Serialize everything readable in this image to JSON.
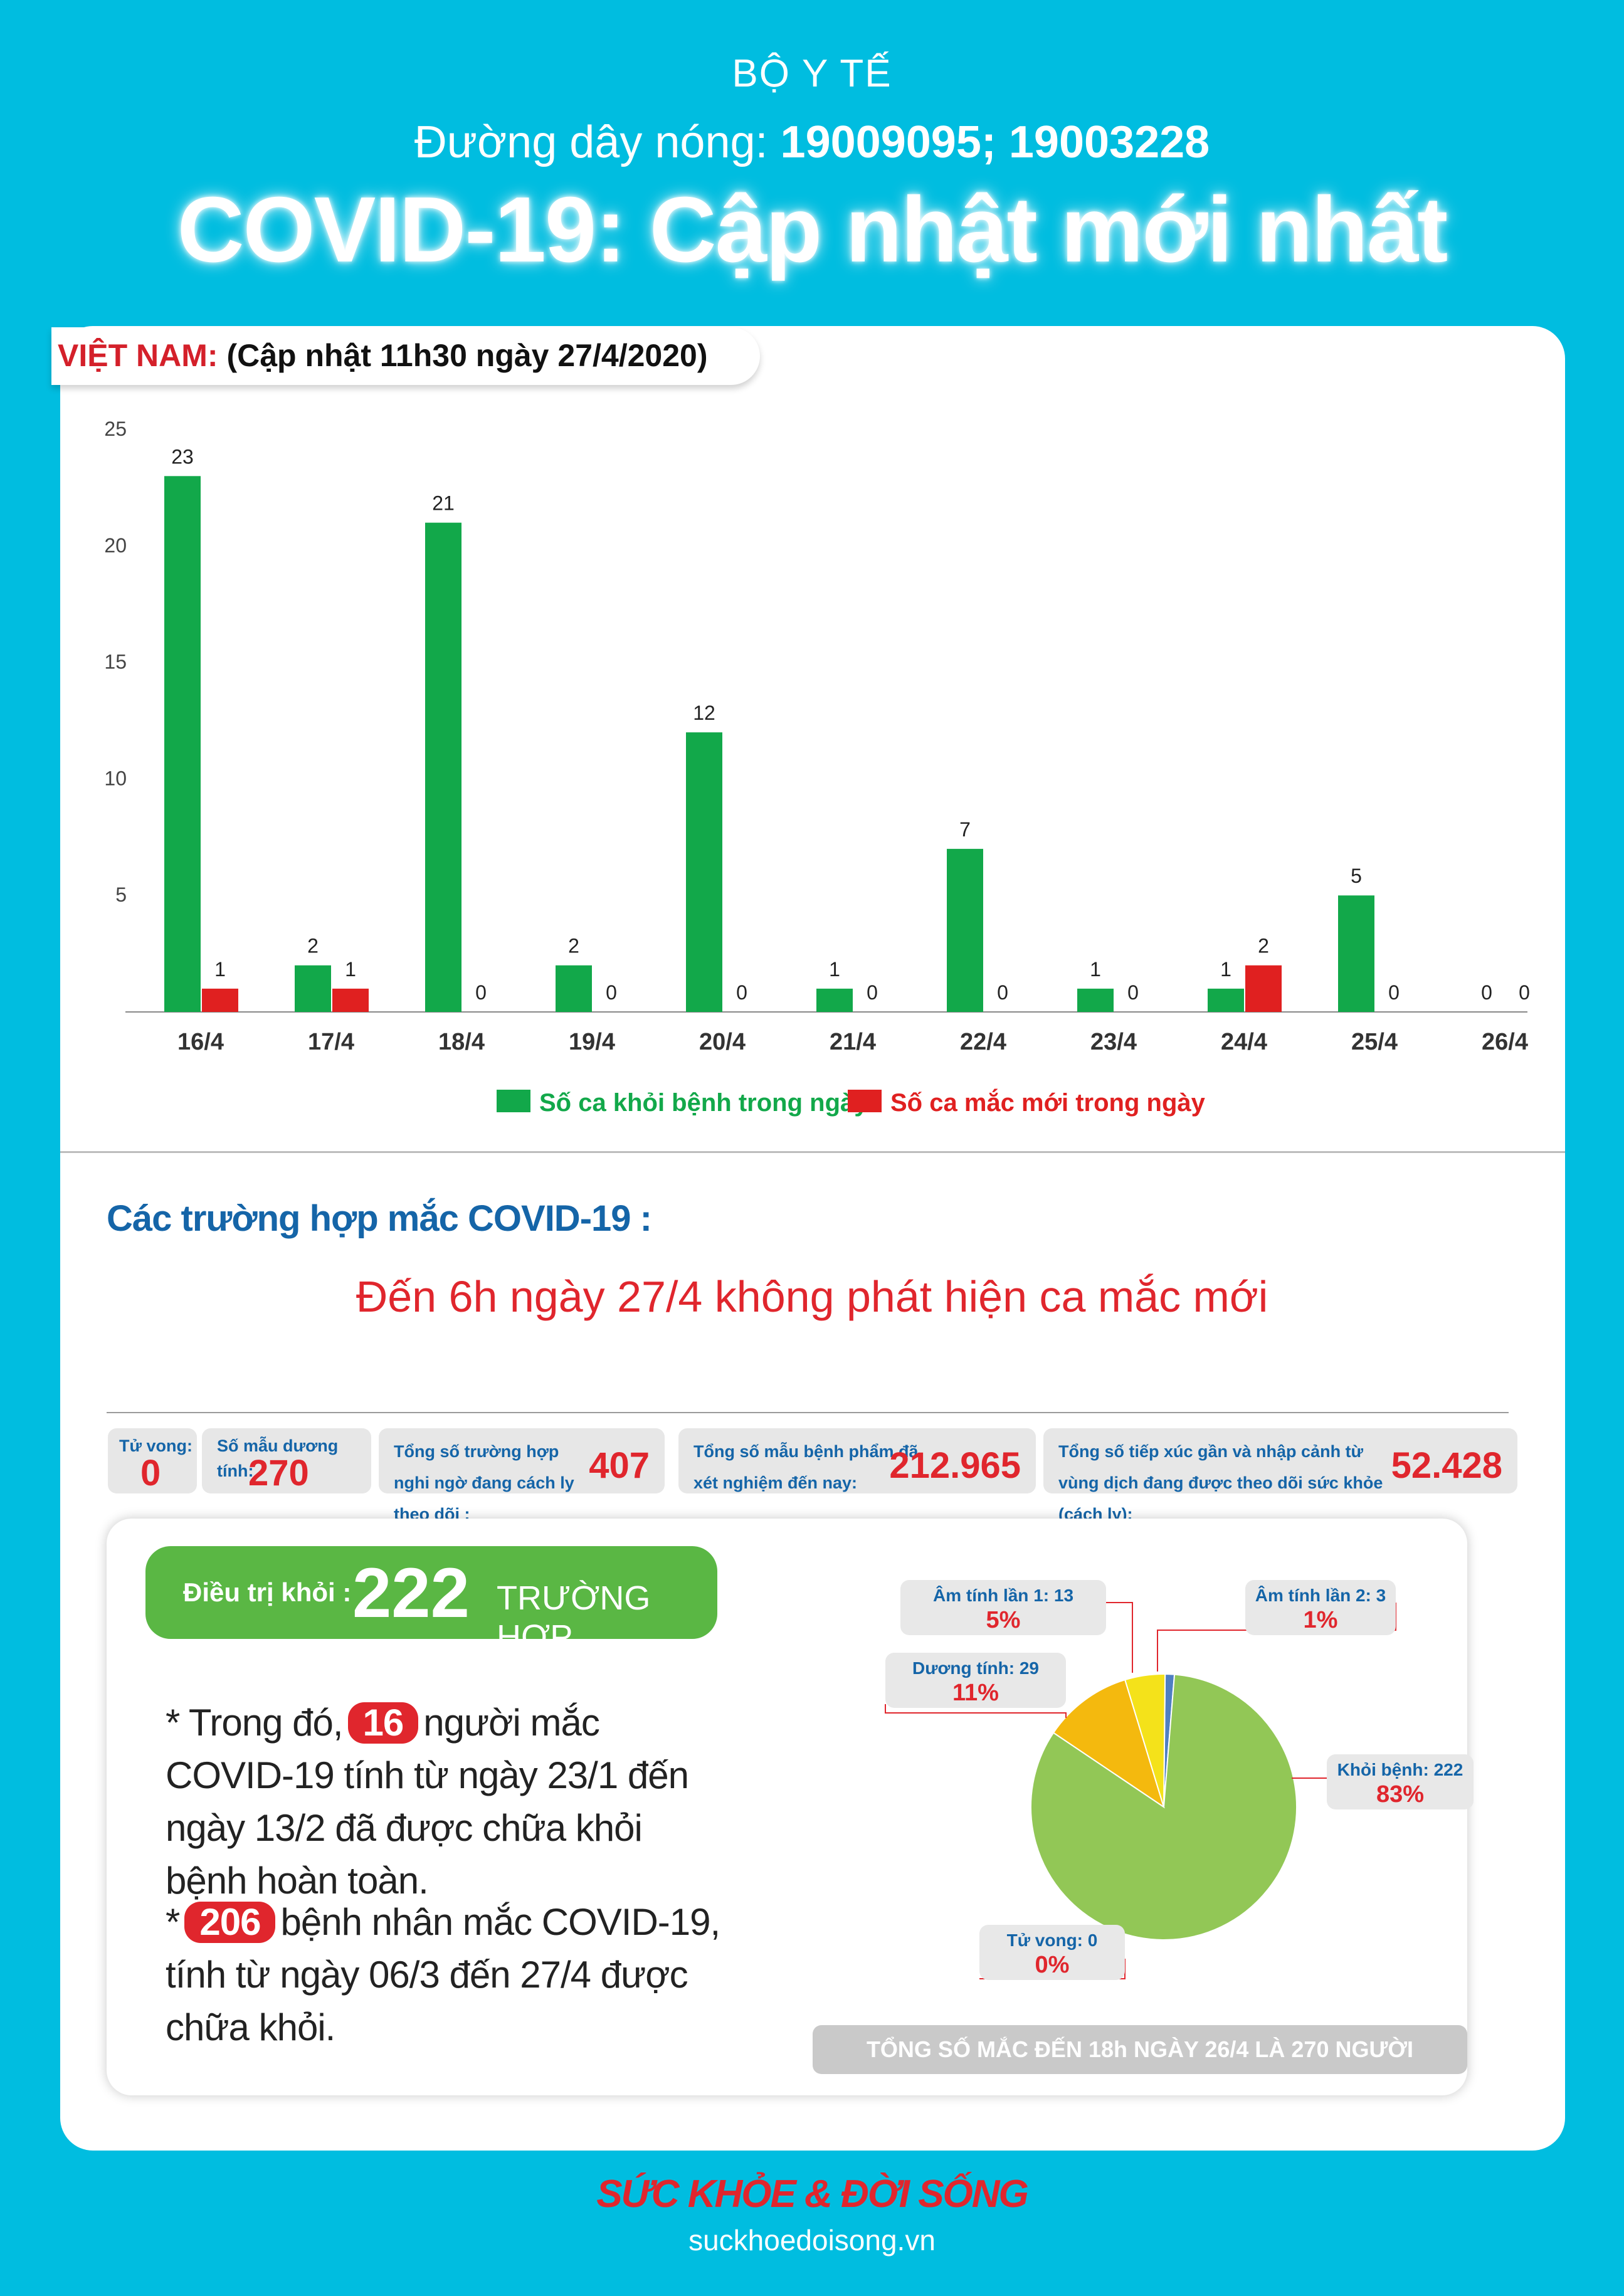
{
  "header": {
    "org": "BỘ Y TẾ",
    "hotline_label": "Đường dây nóng:",
    "hotline_numbers": "19009095; 19003228",
    "title": "COVID-19: Cập nhật mới nhất"
  },
  "tag": {
    "country": "VIỆT NAM:",
    "update": "(Cập nhật 11h30 ngày 27/4/2020)"
  },
  "chart_data": [
    {
      "type": "bar",
      "categories": [
        "16/4",
        "17/4",
        "18/4",
        "19/4",
        "20/4",
        "21/4",
        "22/4",
        "23/4",
        "24/4",
        "25/4",
        "26/4"
      ],
      "series": [
        {
          "name": "Số ca khỏi bệnh trong ngày",
          "color": "#12a84a",
          "values": [
            23,
            2,
            21,
            2,
            12,
            1,
            7,
            1,
            1,
            5,
            0
          ]
        },
        {
          "name": "Số ca mắc mới trong ngày",
          "color": "#e02020",
          "values": [
            1,
            1,
            0,
            0,
            0,
            0,
            0,
            0,
            2,
            0,
            0
          ]
        }
      ],
      "yticks": [
        5,
        10,
        15,
        20,
        25
      ],
      "ylim": [
        0,
        25
      ],
      "grid": false,
      "legend": "bottom"
    },
    {
      "type": "pie",
      "slices": [
        {
          "label": "Khỏi bệnh: 222",
          "value": 222,
          "percent": "83%",
          "color": "#92c756"
        },
        {
          "label": "Dương tính: 29",
          "value": 29,
          "percent": "11%",
          "color": "#f4b90e"
        },
        {
          "label": "Âm tính lần 1: 13",
          "value": 13,
          "percent": "5%",
          "color": "#f4e21a"
        },
        {
          "label": "Âm tính lần 2: 3",
          "value": 3,
          "percent": "1%",
          "color": "#4f7fc2"
        },
        {
          "label": "Tử vong: 0",
          "value": 0,
          "percent": "0%",
          "color": "#999999"
        }
      ]
    }
  ],
  "cases": {
    "title": "Các trường hợp mắc COVID-19 :",
    "note": "Đến 6h ngày 27/4 không phát hiện ca mắc mới"
  },
  "stats": [
    {
      "label": "Tử vong:",
      "value": "0"
    },
    {
      "label": "Số mẫu dương tính:",
      "value": "270"
    },
    {
      "label": "Tổng số trường hợp nghi ngờ đang cách ly theo dõi :",
      "value": "407"
    },
    {
      "label": "Tổng số mẫu bệnh phẩm đã xét nghiệm đến nay:",
      "value": "212.965"
    },
    {
      "label": "Tổng số tiếp xúc gần và nhập cảnh từ vùng dịch đang được theo dõi sức khỏe (cách ly):",
      "value": "52.428"
    }
  ],
  "recovered": {
    "label": "Điều trị khỏi :",
    "number": "222",
    "unit": "TRƯỜNG HỢP"
  },
  "para1": {
    "prefix": "* Trong đó,",
    "badge": "16",
    "text": "người mắc COVID-19 tính từ ngày 23/1 đến ngày 13/2 đã được chữa khỏi bệnh hoàn toàn."
  },
  "para2": {
    "prefix": "*",
    "badge": "206",
    "text": "bệnh nhân mắc COVID-19, tính từ ngày 06/3 đến 27/4 được chữa khỏi."
  },
  "total": "TỔNG SỐ MẮC ĐẾN 18h NGÀY 26/4 LÀ 270 NGƯỜI",
  "brand": {
    "logo": "SỨC KHỎE & ĐỜI SỐNG",
    "url": "suckhoedoisong.vn"
  }
}
